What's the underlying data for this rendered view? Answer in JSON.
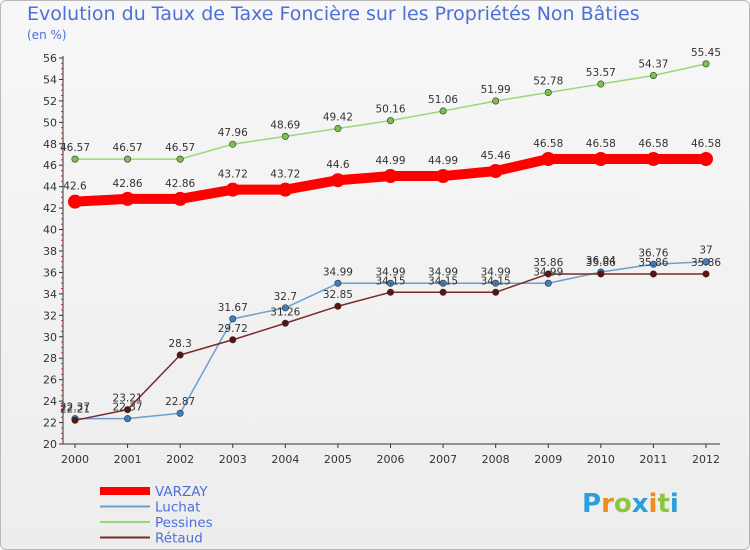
{
  "chart_data": {
    "type": "line",
    "title": "Evolution du Taux de Taxe Foncière sur les Propriétés Non Bâties",
    "subtitle": "(en %)",
    "x": [
      "2000",
      "2001",
      "2002",
      "2003",
      "2004",
      "2005",
      "2006",
      "2007",
      "2008",
      "2009",
      "2010",
      "2011",
      "2012"
    ],
    "ylim": [
      20,
      56
    ],
    "yticks": [
      20,
      22,
      24,
      26,
      28,
      30,
      32,
      34,
      36,
      38,
      40,
      42,
      44,
      46,
      48,
      50,
      52,
      54,
      56
    ],
    "grid": false,
    "legend_position": "bottom-left",
    "series": [
      {
        "name": "VARZAY",
        "color": "#ff0000",
        "values": [
          42.6,
          42.86,
          42.86,
          43.72,
          43.72,
          44.6,
          44.99,
          44.99,
          45.46,
          46.58,
          46.58,
          46.58,
          46.58
        ],
        "labels": [
          "42.6",
          "42.86",
          "42.86",
          "43.72",
          "43.72",
          "44.6",
          "44.99",
          "44.99",
          "45.46",
          "46.58",
          "46.58",
          "46.58",
          "46.58"
        ]
      },
      {
        "name": "Luchat",
        "color": "#6aa0d0",
        "values": [
          22.37,
          22.37,
          22.87,
          31.67,
          32.7,
          34.99,
          34.99,
          34.99,
          34.99,
          34.99,
          36.04,
          36.76,
          37
        ],
        "labels": [
          "22.37",
          "22.37",
          "22.87",
          "31.67",
          "32.7",
          "34.99",
          "34.99",
          "34.99",
          "34.99",
          "34.99",
          "36.04",
          "36.76",
          "37"
        ]
      },
      {
        "name": "Pessines",
        "color": "#99d87a",
        "values": [
          46.57,
          46.57,
          46.57,
          47.96,
          48.69,
          49.42,
          50.16,
          51.06,
          51.99,
          52.78,
          53.57,
          54.37,
          55.45
        ],
        "labels": [
          "46.57",
          "46.57",
          "46.57",
          "47.96",
          "48.69",
          "49.42",
          "50.16",
          "51.06",
          "51.99",
          "52.78",
          "53.57",
          "54.37",
          "55.45"
        ]
      },
      {
        "name": "Rétaud",
        "color": "#7a2a2a",
        "values": [
          22.21,
          23.21,
          28.3,
          29.72,
          31.26,
          32.85,
          34.15,
          34.15,
          34.15,
          35.86,
          35.86,
          35.86,
          35.86
        ],
        "labels": [
          "22.21",
          "23.21",
          "28.3",
          "29.72",
          "31.26",
          "32.85",
          "34.15",
          "34.15",
          "34.15",
          "35.86",
          "35.86",
          "35.86",
          "35.86"
        ]
      }
    ]
  },
  "logo_text": "Proxiti",
  "logo_letters": [
    {
      "ch": "P",
      "color": "#2aa0d8"
    },
    {
      "ch": "r",
      "color": "#f08a1c"
    },
    {
      "ch": "o",
      "color": "#8cc63f"
    },
    {
      "ch": "x",
      "color": "#2aa0d8"
    },
    {
      "ch": "i",
      "color": "#f08a1c"
    },
    {
      "ch": "t",
      "color": "#8cc63f"
    },
    {
      "ch": "i",
      "color": "#2aa0d8"
    }
  ]
}
